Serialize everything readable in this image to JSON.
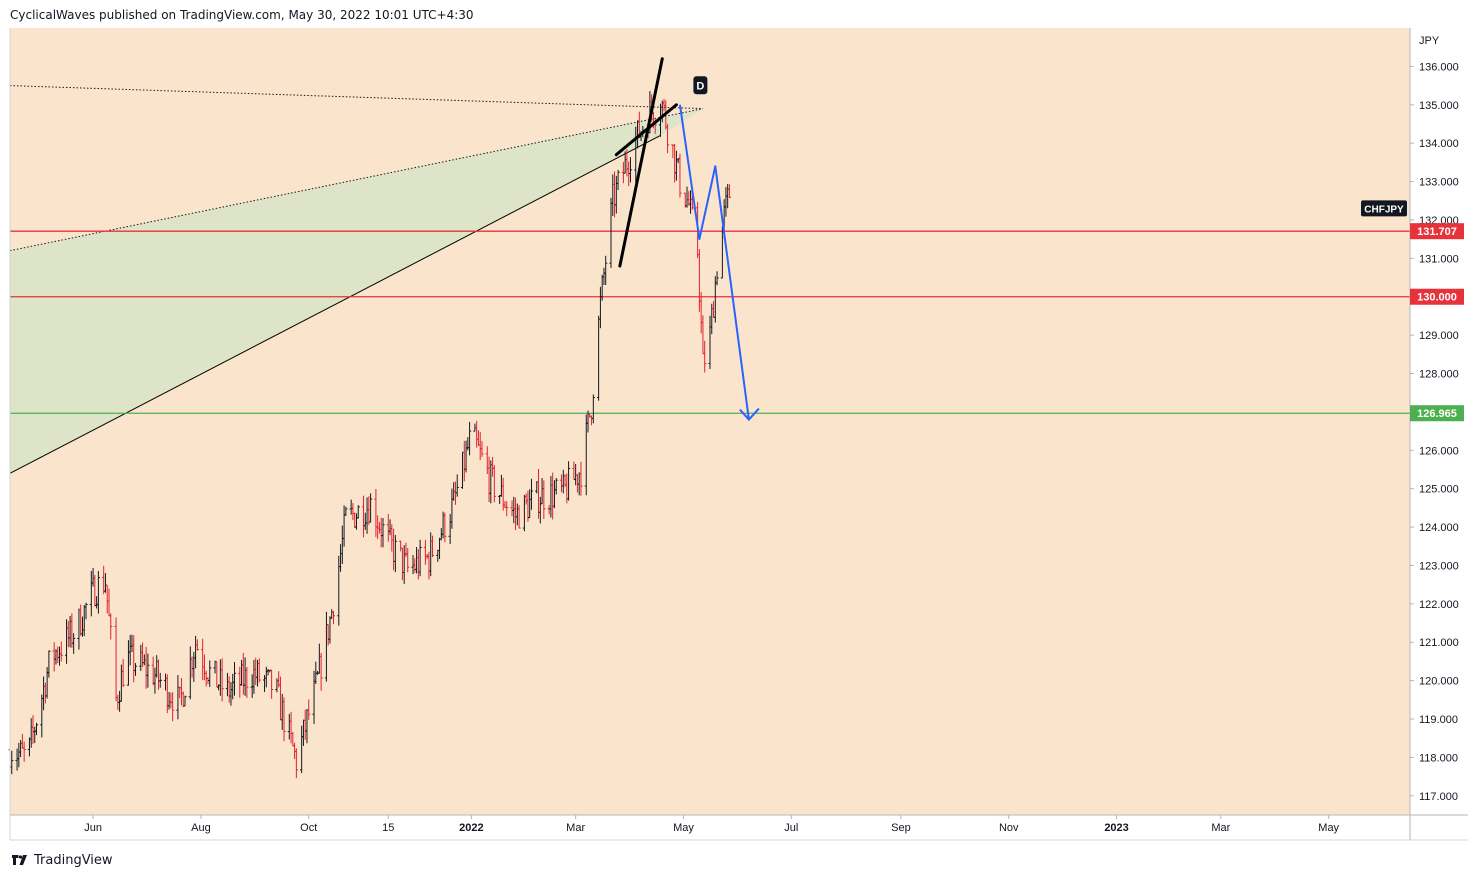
{
  "header": {
    "publisher": "CyclicalWaves published on TradingView.com, May 30, 2022 10:01 UTC+4:30"
  },
  "footer": {
    "brand": "TradingView"
  },
  "colors": {
    "background": "#fae5cc",
    "candle_up": "#131722",
    "candle_down": "#e0212e",
    "support_red": "#e5323b",
    "support_green": "#4caf50",
    "wedge_fill": "#d9e3c8",
    "pattern_blue": "#2962ff",
    "wedge_black": "#000000"
  },
  "chart_data": {
    "type": "candlestick",
    "symbol": "CHFJPY",
    "currency_label": "JPY",
    "y_range": [
      116.5,
      137.0
    ],
    "y_ticks": [
      "117.000",
      "118.000",
      "119.000",
      "120.000",
      "121.000",
      "122.000",
      "123.000",
      "124.000",
      "125.000",
      "126.000",
      "127.000",
      "128.000",
      "129.000",
      "130.000",
      "131.000",
      "132.000",
      "133.000",
      "134.000",
      "135.000",
      "136.000"
    ],
    "x_ticks": [
      "Jun",
      "Aug",
      "Oct",
      "15",
      "2022",
      "Mar",
      "May",
      "Jul",
      "Sep",
      "Nov",
      "2023",
      "Mar",
      "May"
    ],
    "x_tick_dates": [
      "2021-06-01",
      "2021-08-01",
      "2021-10-01",
      "2021-11-15",
      "2022-01-01",
      "2022-03-01",
      "2022-05-01",
      "2022-07-01",
      "2022-09-01",
      "2022-11-01",
      "2023-01-01",
      "2023-03-01",
      "2023-05-01"
    ],
    "x_range_dates": [
      "2021-04-15",
      "2023-06-16"
    ],
    "horizontal_levels": [
      {
        "value": 131.707,
        "label": "131.707",
        "color": "#e5323b"
      },
      {
        "value": 130.0,
        "label": "130.000",
        "color": "#e5323b"
      },
      {
        "value": 126.965,
        "label": "126.965",
        "color": "#4caf50"
      }
    ],
    "symbol_tag": {
      "label": "CHFJPY",
      "value": 132.3
    },
    "close_path": [
      [
        "2021-04-15",
        118.2
      ],
      [
        "2021-04-25",
        118.0
      ],
      [
        "2021-05-08",
        120.6
      ],
      [
        "2021-05-22",
        121.3
      ],
      [
        "2021-06-02",
        122.4
      ],
      [
        "2021-06-08",
        122.6
      ],
      [
        "2021-06-14",
        119.5
      ],
      [
        "2021-06-20",
        120.6
      ],
      [
        "2021-07-05",
        120.2
      ],
      [
        "2021-07-20",
        119.4
      ],
      [
        "2021-07-29",
        121.0
      ],
      [
        "2021-08-06",
        120.2
      ],
      [
        "2021-08-16",
        119.7
      ],
      [
        "2021-08-30",
        120.2
      ],
      [
        "2021-09-12",
        119.8
      ],
      [
        "2021-09-24",
        117.9
      ],
      [
        "2021-10-06",
        120.0
      ],
      [
        "2021-10-14",
        121.8
      ],
      [
        "2021-10-22",
        124.2
      ],
      [
        "2021-11-05",
        124.6
      ],
      [
        "2021-11-15",
        123.6
      ],
      [
        "2021-11-26",
        122.9
      ],
      [
        "2021-12-08",
        123.2
      ],
      [
        "2021-12-22",
        124.6
      ],
      [
        "2022-01-01",
        126.4
      ],
      [
        "2022-01-12",
        125.2
      ],
      [
        "2022-01-26",
        124.3
      ],
      [
        "2022-02-08",
        124.8
      ],
      [
        "2022-02-22",
        124.9
      ],
      [
        "2022-03-04",
        125.5
      ],
      [
        "2022-03-10",
        127.2
      ],
      [
        "2022-03-15",
        129.8
      ],
      [
        "2022-03-22",
        132.5
      ],
      [
        "2022-03-29",
        133.4
      ],
      [
        "2022-04-05",
        134.2
      ],
      [
        "2022-04-12",
        134.8
      ],
      [
        "2022-04-19",
        135.0
      ],
      [
        "2022-04-24",
        134.0
      ],
      [
        "2022-04-29",
        133.0
      ],
      [
        "2022-05-04",
        132.4
      ],
      [
        "2022-05-09",
        131.2
      ],
      [
        "2022-05-12",
        128.2
      ],
      [
        "2022-05-16",
        129.0
      ],
      [
        "2022-05-20",
        130.8
      ],
      [
        "2022-05-24",
        132.1
      ],
      [
        "2022-05-27",
        132.7
      ]
    ],
    "pattern_label": "D",
    "wedge_lines": [
      {
        "from": [
          "2021-04-15",
          125.4
        ],
        "to": [
          "2022-04-18",
          134.2
        ],
        "style": "solid",
        "color": "#000000"
      },
      {
        "from": [
          "2021-04-15",
          131.2
        ],
        "to": [
          "2022-05-12",
          134.9
        ],
        "style": "dotted",
        "color": "#131722"
      },
      {
        "from": [
          "2021-04-15",
          135.5
        ],
        "to": [
          "2022-05-12",
          134.9
        ],
        "style": "dotted",
        "color": "#131722"
      }
    ],
    "bold_wedge": [
      {
        "from": [
          "2022-03-26",
          130.8
        ],
        "to": [
          "2022-04-19",
          136.2
        ]
      },
      {
        "from": [
          "2022-03-24",
          133.7
        ],
        "to": [
          "2022-04-27",
          135.0
        ]
      }
    ],
    "projection_path": [
      [
        "2022-04-29",
        135.0
      ],
      [
        "2022-05-10",
        131.5
      ],
      [
        "2022-05-19",
        133.4
      ],
      [
        "2022-06-07",
        126.8
      ]
    ],
    "projection_arrow_tip": [
      "2022-06-07",
      126.8
    ],
    "grid": false,
    "legend": "none"
  }
}
